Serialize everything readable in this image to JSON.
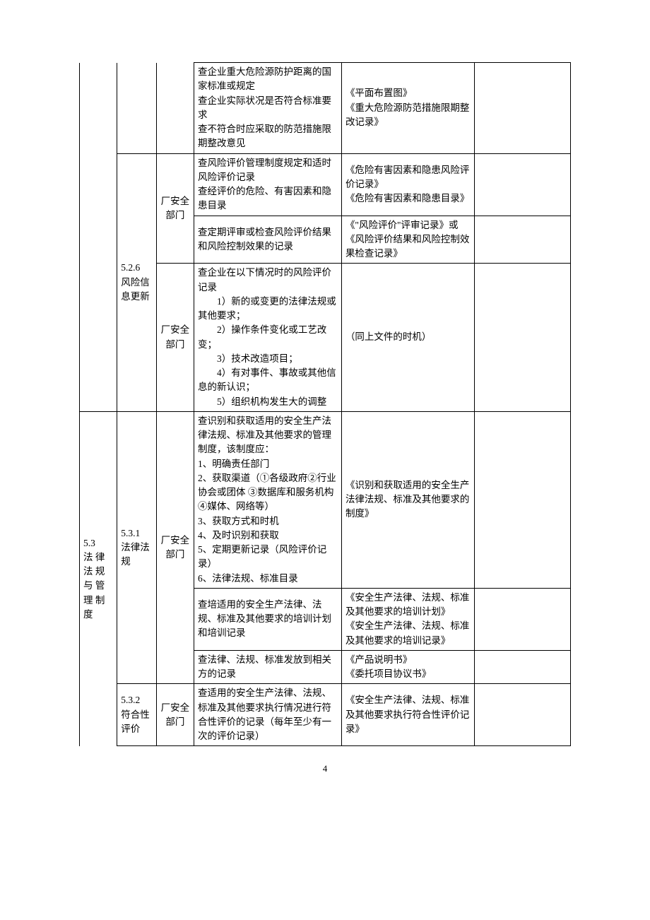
{
  "r1": {
    "c4": "查企业重大危险源防护距离的国家标准或规定\n查企业实际状况是否符合标准要求\n查不符合时应采取的防范措施限期整改意见",
    "c5": "《平面布置图》\n《重大危险源防范措施限期整改记录》"
  },
  "r2": {
    "c2": "5.2.6\n风险信息更新",
    "c3": "厂安全部门",
    "c4": "查风险评价管理制度规定和适时风险评价记录\n查经评价的危险、有害因素和隐患目录",
    "c5": "《危险有害因素和隐患风险评价记录》\n《危险有害因素和隐患目录》"
  },
  "r3": {
    "c4": "查定期评审或检查风险评价结果和风险控制效果的记录",
    "c5": "《\"风险评价\"评审记录》或\n《风险评价结果和风险控制效果检查记录》"
  },
  "r4": {
    "c3": "厂安全部门",
    "c4": "查企业在以下情况时的风险评价记录\n　　1）新的或变更的法律法规或其他要求；\n　　2）操作条件变化或工艺改变；\n　　3）技术改造项目；\n　　4）有对事件、事故或其他信息的新认识；\n　　5）组织机构发生大的调整",
    "c5": "（同上文件的时机）"
  },
  "r5": {
    "c1": "5.3\n法 律法 规与 管理 制度",
    "c2": "5.3.1\n法律法规",
    "c3": "厂安全部门",
    "c4": "查识别和获取适用的安全生产法律法规、标准及其他要求的管理制度，该制度应：\n1、明确责任部门\n2、获取渠道（①各级政府②行业协会或团体 ③数据库和服务机构 ④媒体、网络等）\n3、获取方式和时机\n4、及时识别和获取\n5、定期更新记录（风险评价记录）\n6、法律法规、标准目录",
    "c5": "《识别和获取适用的安全生产法律法规、标准及其他要求的制度》"
  },
  "r6": {
    "c4": "查培适用的安全生产法律、法规、标准及其他要求的培训计划和培训记录",
    "c5": "《安全生产法律、法规、标准及其他要求的培训计划》\n《安全生产法律、法规、标准及其他要求的培训记录》"
  },
  "r7": {
    "c4": "查法律、法规、标准发放到相关方的记录",
    "c5": "《产品说明书》\n《委托项目协议书》"
  },
  "r8": {
    "c2": "5.3.2\n符合性评价",
    "c3": "厂安全部门",
    "c4": "查适用的安全生产法律、法规、标准及其他要求执行情况进行符合性评价的记录（每年至少有一次的评价记录）",
    "c5": "《安全生产法律、法规、标准及其他要求执行符合性评价记录》"
  },
  "pagenum": "4"
}
